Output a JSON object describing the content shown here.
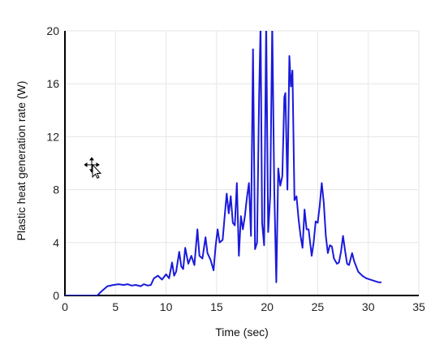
{
  "chart_data": {
    "type": "line",
    "title": "",
    "xlabel": "Time (sec)",
    "ylabel": "Plastic heat generation rate (W)",
    "xlim": [
      0,
      35
    ],
    "ylim": [
      0,
      20
    ],
    "x_ticks": [
      "0",
      "5",
      "10",
      "15",
      "20",
      "25",
      "30",
      "35"
    ],
    "y_ticks": [
      "0",
      "4",
      "8",
      "12",
      "16",
      "20"
    ],
    "grid": true,
    "legend": "none",
    "series": [
      {
        "color": "#1a1adb",
        "points": [
          [
            0,
            0
          ],
          [
            3.2,
            0
          ],
          [
            3.6,
            0.3
          ],
          [
            4.2,
            0.7
          ],
          [
            4.8,
            0.8
          ],
          [
            5.3,
            0.85
          ],
          [
            5.8,
            0.8
          ],
          [
            6.2,
            0.85
          ],
          [
            6.6,
            0.75
          ],
          [
            7.0,
            0.8
          ],
          [
            7.5,
            0.7
          ],
          [
            7.8,
            0.85
          ],
          [
            8.2,
            0.75
          ],
          [
            8.5,
            0.8
          ],
          [
            8.8,
            1.3
          ],
          [
            9.2,
            1.5
          ],
          [
            9.6,
            1.2
          ],
          [
            10.0,
            1.6
          ],
          [
            10.3,
            1.3
          ],
          [
            10.6,
            2.5
          ],
          [
            10.8,
            1.5
          ],
          [
            11.0,
            1.8
          ],
          [
            11.3,
            3.3
          ],
          [
            11.5,
            2.2
          ],
          [
            11.7,
            2.0
          ],
          [
            11.9,
            3.6
          ],
          [
            12.2,
            2.4
          ],
          [
            12.5,
            3.0
          ],
          [
            12.8,
            2.3
          ],
          [
            13.1,
            5.0
          ],
          [
            13.3,
            3.0
          ],
          [
            13.6,
            2.8
          ],
          [
            13.9,
            4.4
          ],
          [
            14.1,
            3.2
          ],
          [
            14.4,
            2.7
          ],
          [
            14.7,
            1.9
          ],
          [
            14.9,
            3.7
          ],
          [
            15.1,
            5.0
          ],
          [
            15.3,
            4.0
          ],
          [
            15.6,
            4.2
          ],
          [
            15.8,
            6.0
          ],
          [
            16.0,
            7.7
          ],
          [
            16.2,
            6.2
          ],
          [
            16.4,
            7.5
          ],
          [
            16.6,
            5.5
          ],
          [
            16.8,
            5.3
          ],
          [
            17.0,
            8.5
          ],
          [
            17.2,
            3.0
          ],
          [
            17.4,
            6.0
          ],
          [
            17.6,
            5.0
          ],
          [
            17.8,
            6.0
          ],
          [
            18.0,
            7.4
          ],
          [
            18.2,
            8.5
          ],
          [
            18.4,
            4.5
          ],
          [
            18.6,
            18.6
          ],
          [
            18.8,
            3.5
          ],
          [
            19.0,
            4.0
          ],
          [
            19.2,
            15.0
          ],
          [
            19.35,
            20.5
          ],
          [
            19.5,
            5.5
          ],
          [
            19.7,
            3.8
          ],
          [
            19.9,
            20.5
          ],
          [
            20.1,
            4.8
          ],
          [
            20.3,
            7.5
          ],
          [
            20.5,
            20.5
          ],
          [
            20.7,
            8.0
          ],
          [
            20.9,
            1.0
          ],
          [
            21.1,
            9.6
          ],
          [
            21.3,
            8.3
          ],
          [
            21.5,
            9.0
          ],
          [
            21.7,
            15.0
          ],
          [
            21.8,
            15.3
          ],
          [
            22.0,
            8.0
          ],
          [
            22.2,
            18.1
          ],
          [
            22.35,
            15.8
          ],
          [
            22.5,
            17.0
          ],
          [
            22.7,
            7.2
          ],
          [
            22.9,
            7.5
          ],
          [
            23.1,
            5.8
          ],
          [
            23.3,
            4.5
          ],
          [
            23.5,
            3.6
          ],
          [
            23.7,
            6.5
          ],
          [
            23.9,
            5.0
          ],
          [
            24.1,
            5.0
          ],
          [
            24.4,
            3.0
          ],
          [
            24.6,
            4.0
          ],
          [
            24.8,
            5.6
          ],
          [
            25.0,
            5.5
          ],
          [
            25.2,
            6.8
          ],
          [
            25.4,
            8.5
          ],
          [
            25.6,
            7.0
          ],
          [
            25.8,
            4.5
          ],
          [
            26.0,
            3.2
          ],
          [
            26.2,
            3.8
          ],
          [
            26.4,
            3.7
          ],
          [
            26.6,
            2.8
          ],
          [
            26.9,
            2.4
          ],
          [
            27.1,
            2.5
          ],
          [
            27.3,
            3.3
          ],
          [
            27.5,
            4.5
          ],
          [
            27.7,
            3.4
          ],
          [
            27.9,
            2.4
          ],
          [
            28.1,
            2.3
          ],
          [
            28.4,
            3.2
          ],
          [
            28.6,
            2.6
          ],
          [
            29.0,
            1.8
          ],
          [
            29.4,
            1.5
          ],
          [
            29.8,
            1.3
          ],
          [
            30.2,
            1.2
          ],
          [
            30.6,
            1.1
          ],
          [
            31.0,
            1.0
          ],
          [
            31.3,
            1.0
          ]
        ]
      }
    ]
  },
  "icons": {
    "cursor": "move-cursor-icon"
  }
}
